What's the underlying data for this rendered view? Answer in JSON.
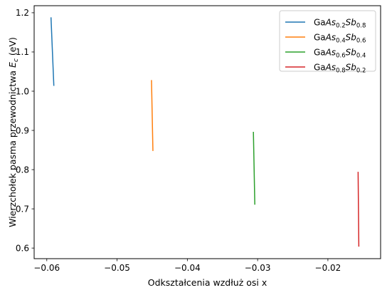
{
  "chart_data": {
    "type": "line",
    "title": "",
    "xlabel": "Odkształcenia wzdłuż osi x",
    "ylabel_main": "Wierzchołek pasma przewodnictwa ",
    "ylabel_symbol": "E",
    "ylabel_sub": "c",
    "ylabel_unit": " (eV)",
    "xlim": [
      -0.0618,
      -0.0125
    ],
    "ylim": [
      0.573,
      1.218
    ],
    "x_ticks": [
      -0.06,
      -0.05,
      -0.04,
      -0.03,
      -0.02
    ],
    "x_tick_labels": [
      "−0.06",
      "−0.05",
      "−0.04",
      "−0.03",
      "−0.02"
    ],
    "y_ticks": [
      0.6,
      0.7,
      0.8,
      0.9,
      1.0,
      1.1,
      1.2
    ],
    "y_tick_labels": [
      "0.6",
      "0.7",
      "0.8",
      "0.9",
      "1.0",
      "1.1",
      "1.2"
    ],
    "grid": false,
    "legend_position": "top-right",
    "series": [
      {
        "name": "GaAs0.2Sb0.8",
        "color": "#1f77b4",
        "x": [
          -0.0594,
          -0.059
        ],
        "y": [
          1.187,
          1.015
        ],
        "legend": {
          "prefix": "Ga",
          "a": "As",
          "a_sub": "0.2",
          "b": "Sb",
          "b_sub": "0.8"
        }
      },
      {
        "name": "GaAs0.4Sb0.6",
        "color": "#ff7f0e",
        "x": [
          -0.0451,
          -0.0449
        ],
        "y": [
          1.027,
          0.849
        ],
        "legend": {
          "prefix": "Ga",
          "a": "As",
          "a_sub": "0.4",
          "b": "Sb",
          "b_sub": "0.6"
        }
      },
      {
        "name": "GaAs0.6Sb0.4",
        "color": "#2ca02c",
        "x": [
          -0.0306,
          -0.0304
        ],
        "y": [
          0.895,
          0.712
        ],
        "legend": {
          "prefix": "Ga",
          "a": "As",
          "a_sub": "0.6",
          "b": "Sb",
          "b_sub": "0.4"
        }
      },
      {
        "name": "GaAs0.8Sb0.2",
        "color": "#d62728",
        "x": [
          -0.0157,
          -0.0156
        ],
        "y": [
          0.793,
          0.605
        ],
        "legend": {
          "prefix": "Ga",
          "a": "As",
          "a_sub": "0.8",
          "b": "Sb",
          "b_sub": "0.2"
        }
      }
    ]
  }
}
